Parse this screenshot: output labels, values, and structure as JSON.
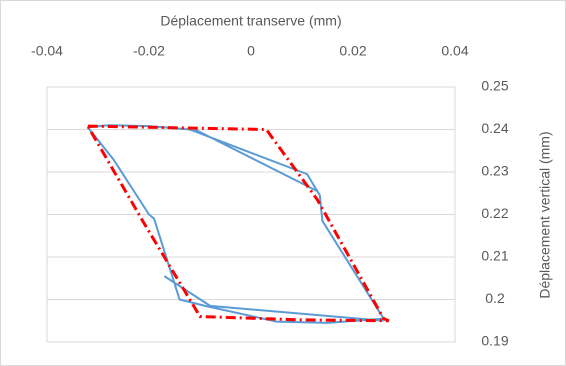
{
  "chart_data": {
    "type": "line",
    "x_label": "Déplacement transerve (mm)",
    "y_label": "Déplacement vertical (mm)",
    "xlim": [
      -0.04,
      0.04
    ],
    "xticks": [
      -0.04,
      -0.02,
      0,
      0.02,
      0.04
    ],
    "ylim": [
      0.19,
      0.25
    ],
    "yticks": [
      0.19,
      0.2,
      0.21,
      0.22,
      0.23,
      0.24,
      0.25
    ],
    "grid": true,
    "series": [
      {
        "color": "#5b9bd5",
        "dash": "solid",
        "x": [
          -0.032,
          -0.028,
          -0.02,
          -0.012,
          0.011,
          0.0135,
          0.014,
          0.026,
          0.015,
          0.005,
          -0.009,
          -0.014,
          -0.019,
          -0.02,
          -0.027,
          -0.032,
          null,
          -0.011,
          0.013,
          null,
          -0.017,
          -0.008,
          0.026
        ],
        "values": [
          0.2405,
          0.241,
          0.2408,
          0.24,
          0.2295,
          0.2245,
          0.2185,
          0.1955,
          0.1945,
          0.1948,
          0.1985,
          0.2,
          0.219,
          0.22,
          0.233,
          0.2405,
          null,
          0.24,
          0.2255,
          null,
          0.2055,
          0.1985,
          0.195
        ]
      },
      {
        "color": "#ff0000",
        "dash": "dashdot",
        "x": [
          -0.032,
          0.003,
          0.013,
          0.026,
          0.027,
          0.01,
          -0.01,
          -0.016,
          -0.021,
          -0.032
        ],
        "values": [
          0.2408,
          0.24,
          0.2235,
          0.1955,
          0.195,
          0.1952,
          0.196,
          0.208,
          0.218,
          0.2408
        ]
      }
    ]
  }
}
